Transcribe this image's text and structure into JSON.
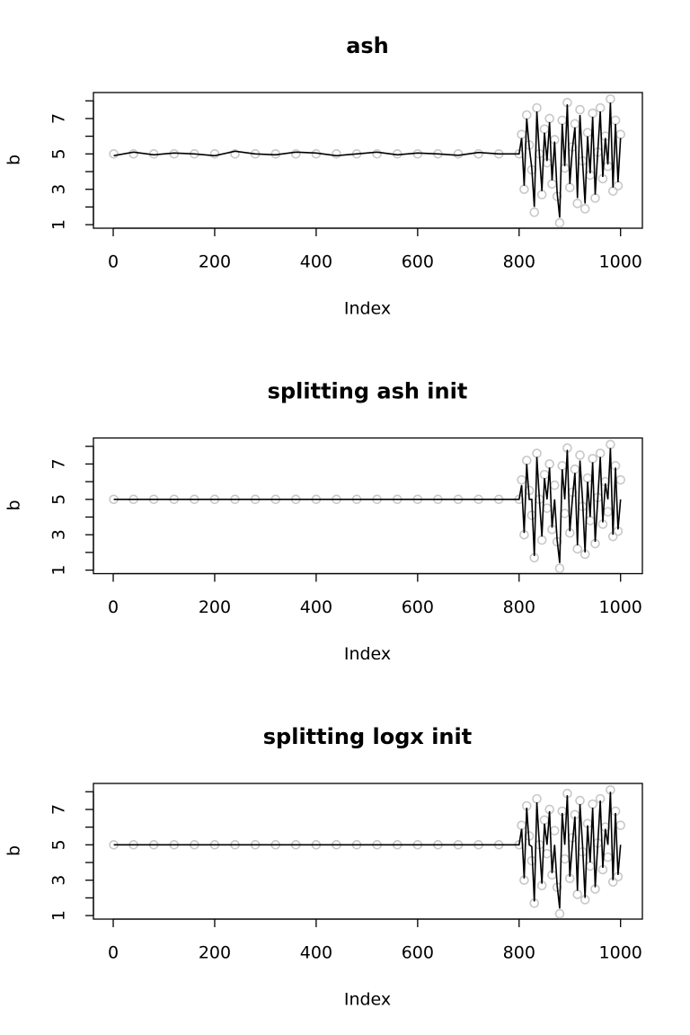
{
  "chart_data": [
    {
      "type": "scatter-line",
      "title": "ash",
      "xlabel": "Index",
      "ylabel": "b",
      "x": [
        1,
        40,
        80,
        120,
        160,
        200,
        240,
        280,
        320,
        360,
        400,
        440,
        480,
        520,
        560,
        600,
        640,
        680,
        720,
        760,
        800,
        805,
        810,
        815,
        820,
        825,
        830,
        835,
        840,
        845,
        850,
        855,
        860,
        865,
        870,
        875,
        880,
        885,
        890,
        895,
        900,
        905,
        910,
        915,
        920,
        925,
        930,
        935,
        940,
        945,
        950,
        955,
        960,
        965,
        970,
        975,
        980,
        985,
        990,
        995,
        1000
      ],
      "series": [
        {
          "style": "points",
          "color": "#c8c8c8",
          "values": [
            5,
            5,
            5,
            5,
            5,
            5,
            5,
            5,
            5,
            5,
            5,
            5,
            5,
            5,
            5,
            5,
            5,
            5,
            5,
            5,
            5,
            6.1,
            3.0,
            7.2,
            5.5,
            4.1,
            1.7,
            7.6,
            5.0,
            2.7,
            6.4,
            4.5,
            7.0,
            3.3,
            5.8,
            2.6,
            1.1,
            6.9,
            4.2,
            7.9,
            3.1,
            5.4,
            6.7,
            2.2,
            7.5,
            4.6,
            1.9,
            6.2,
            3.8,
            7.3,
            2.5,
            5.1,
            7.6,
            3.6,
            6.0,
            4.3,
            8.1,
            2.9,
            6.9,
            3.2,
            6.1
          ]
        },
        {
          "style": "line",
          "color": "#000000",
          "values": [
            4.9,
            5.1,
            4.95,
            5.05,
            5.0,
            4.9,
            5.15,
            5.0,
            4.95,
            5.1,
            5.05,
            4.9,
            5.0,
            5.1,
            4.95,
            5.05,
            5.0,
            4.92,
            5.08,
            5.0,
            5.0,
            5.9,
            3.2,
            7.0,
            5.4,
            4.2,
            2.0,
            7.4,
            5.0,
            2.9,
            6.2,
            4.6,
            6.8,
            3.5,
            5.7,
            2.8,
            1.4,
            6.7,
            4.3,
            7.8,
            3.3,
            5.3,
            6.5,
            2.5,
            7.2,
            4.6,
            2.2,
            6.0,
            3.9,
            7.1,
            2.7,
            5.1,
            7.4,
            3.7,
            5.9,
            4.4,
            7.9,
            3.1,
            6.7,
            3.4,
            5.9
          ]
        }
      ],
      "xlim": [
        -39,
        1043
      ],
      "ylim": [
        0.8,
        8.47
      ],
      "xticks": [
        0,
        200,
        400,
        600,
        800,
        1000
      ],
      "yticks": [
        1,
        {
          "value": 2,
          "label": null
        },
        3,
        {
          "value": 4,
          "label": null
        },
        5,
        {
          "value": 6,
          "label": null
        },
        7,
        {
          "value": 8,
          "label": null
        }
      ]
    },
    {
      "type": "scatter-line",
      "title": "splitting ash init",
      "xlabel": "Index",
      "ylabel": "b",
      "x": [
        1,
        40,
        80,
        120,
        160,
        200,
        240,
        280,
        320,
        360,
        400,
        440,
        480,
        520,
        560,
        600,
        640,
        680,
        720,
        760,
        800,
        805,
        810,
        815,
        820,
        825,
        830,
        835,
        840,
        845,
        850,
        855,
        860,
        865,
        870,
        875,
        880,
        885,
        890,
        895,
        900,
        905,
        910,
        915,
        920,
        925,
        930,
        935,
        940,
        945,
        950,
        955,
        960,
        965,
        970,
        975,
        980,
        985,
        990,
        995,
        1000
      ],
      "series": [
        {
          "style": "points",
          "color": "#c8c8c8",
          "values": [
            5,
            5,
            5,
            5,
            5,
            5,
            5,
            5,
            5,
            5,
            5,
            5,
            5,
            5,
            5,
            5,
            5,
            5,
            5,
            5,
            5,
            6.1,
            3.0,
            7.2,
            5.5,
            4.1,
            1.7,
            7.6,
            5.0,
            2.7,
            6.4,
            4.5,
            7.0,
            3.3,
            5.8,
            2.6,
            1.1,
            6.9,
            4.2,
            7.9,
            3.1,
            5.4,
            6.7,
            2.2,
            7.5,
            4.6,
            1.9,
            6.2,
            3.8,
            7.3,
            2.5,
            5.1,
            7.6,
            3.6,
            6.0,
            4.3,
            8.1,
            2.9,
            6.9,
            3.2,
            6.1
          ]
        },
        {
          "style": "line",
          "color": "#000000",
          "values": [
            5,
            5,
            5,
            5,
            5,
            5,
            5,
            5,
            5,
            5,
            5,
            5,
            5,
            5,
            5,
            5,
            5,
            5,
            5,
            5,
            5,
            5.8,
            3.1,
            7.0,
            5.0,
            5.0,
            1.8,
            7.4,
            5.0,
            2.9,
            6.2,
            5.0,
            6.8,
            3.4,
            5.0,
            2.7,
            1.4,
            6.7,
            5.0,
            7.8,
            3.2,
            5.0,
            6.5,
            2.4,
            7.2,
            5.0,
            2.0,
            6.0,
            4.0,
            7.1,
            2.6,
            5.0,
            7.4,
            3.7,
            5.9,
            5.0,
            7.9,
            3.0,
            6.8,
            3.3,
            5.0
          ]
        }
      ],
      "xlim": [
        -39,
        1043
      ],
      "ylim": [
        0.8,
        8.47
      ],
      "xticks": [
        0,
        200,
        400,
        600,
        800,
        1000
      ],
      "yticks": [
        1,
        {
          "value": 2,
          "label": null
        },
        3,
        {
          "value": 4,
          "label": null
        },
        5,
        {
          "value": 6,
          "label": null
        },
        7,
        {
          "value": 8,
          "label": null
        }
      ]
    },
    {
      "type": "scatter-line",
      "title": "splitting logx init",
      "xlabel": "Index",
      "ylabel": "b",
      "x": [
        1,
        40,
        80,
        120,
        160,
        200,
        240,
        280,
        320,
        360,
        400,
        440,
        480,
        520,
        560,
        600,
        640,
        680,
        720,
        760,
        800,
        805,
        810,
        815,
        820,
        825,
        830,
        835,
        840,
        845,
        850,
        855,
        860,
        865,
        870,
        875,
        880,
        885,
        890,
        895,
        900,
        905,
        910,
        915,
        920,
        925,
        930,
        935,
        940,
        945,
        950,
        955,
        960,
        965,
        970,
        975,
        980,
        985,
        990,
        995,
        1000
      ],
      "series": [
        {
          "style": "points",
          "color": "#c8c8c8",
          "values": [
            5,
            5,
            5,
            5,
            5,
            5,
            5,
            5,
            5,
            5,
            5,
            5,
            5,
            5,
            5,
            5,
            5,
            5,
            5,
            5,
            5,
            6.1,
            3.0,
            7.2,
            5.5,
            4.1,
            1.7,
            7.6,
            5.0,
            2.7,
            6.4,
            4.5,
            7.0,
            3.3,
            5.8,
            2.6,
            1.1,
            6.9,
            4.2,
            7.9,
            3.1,
            5.4,
            6.7,
            2.2,
            7.5,
            4.6,
            1.9,
            6.2,
            3.8,
            7.3,
            2.5,
            5.1,
            7.6,
            3.6,
            6.0,
            4.3,
            8.1,
            2.9,
            6.9,
            3.2,
            6.1
          ]
        },
        {
          "style": "line",
          "color": "#000000",
          "values": [
            5,
            5,
            5,
            5,
            5,
            5,
            5,
            5,
            5,
            5,
            5,
            5,
            5,
            5,
            5,
            5,
            5,
            5,
            5,
            5,
            5,
            5.9,
            3.1,
            7.1,
            5.0,
            4.9,
            1.8,
            7.4,
            5.0,
            2.8,
            6.2,
            5.0,
            6.9,
            3.4,
            5.0,
            2.7,
            1.4,
            6.8,
            5.0,
            7.8,
            3.2,
            5.0,
            6.6,
            2.4,
            7.3,
            5.0,
            2.0,
            6.1,
            4.0,
            7.1,
            2.6,
            5.0,
            7.5,
            3.7,
            5.9,
            5.0,
            8.0,
            3.0,
            6.8,
            3.3,
            5.0
          ]
        }
      ],
      "xlim": [
        -39,
        1043
      ],
      "ylim": [
        0.8,
        8.47
      ],
      "xticks": [
        0,
        200,
        400,
        600,
        800,
        1000
      ],
      "yticks": [
        1,
        {
          "value": 2,
          "label": null
        },
        3,
        {
          "value": 4,
          "label": null
        },
        5,
        {
          "value": 6,
          "label": null
        },
        7,
        {
          "value": 8,
          "label": null
        }
      ]
    }
  ]
}
